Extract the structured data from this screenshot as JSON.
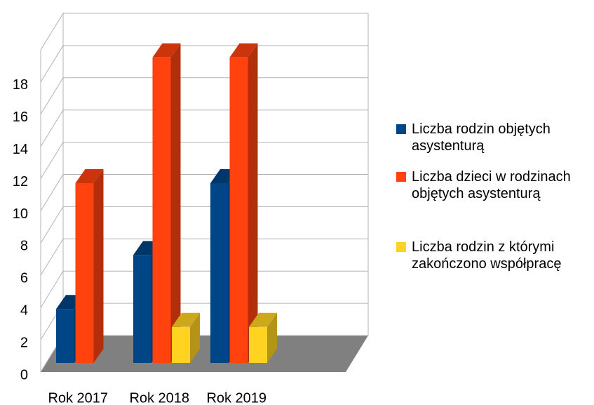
{
  "chart_data": {
    "type": "bar3d",
    "categories": [
      "Rok 2017",
      "Rok 2018",
      "Rok 2019"
    ],
    "series": [
      {
        "name": "Liczba rodzin objętych asystenturą",
        "color": "#004586",
        "values": [
          3,
          6,
          10
        ]
      },
      {
        "name": "Liczba dzieci w rodzinach objętych asystenturą",
        "color": "#ff420e",
        "values": [
          10,
          17,
          17
        ]
      },
      {
        "name": "Liczba rodzin z którymi zakończono współpracę",
        "color": "#ffd320",
        "values": [
          null,
          2,
          2
        ]
      }
    ],
    "ylim": [
      0,
      20
    ],
    "yticks": [
      0,
      2,
      4,
      6,
      8,
      10,
      12,
      14,
      16,
      18
    ],
    "grid": true,
    "legend": "right"
  }
}
